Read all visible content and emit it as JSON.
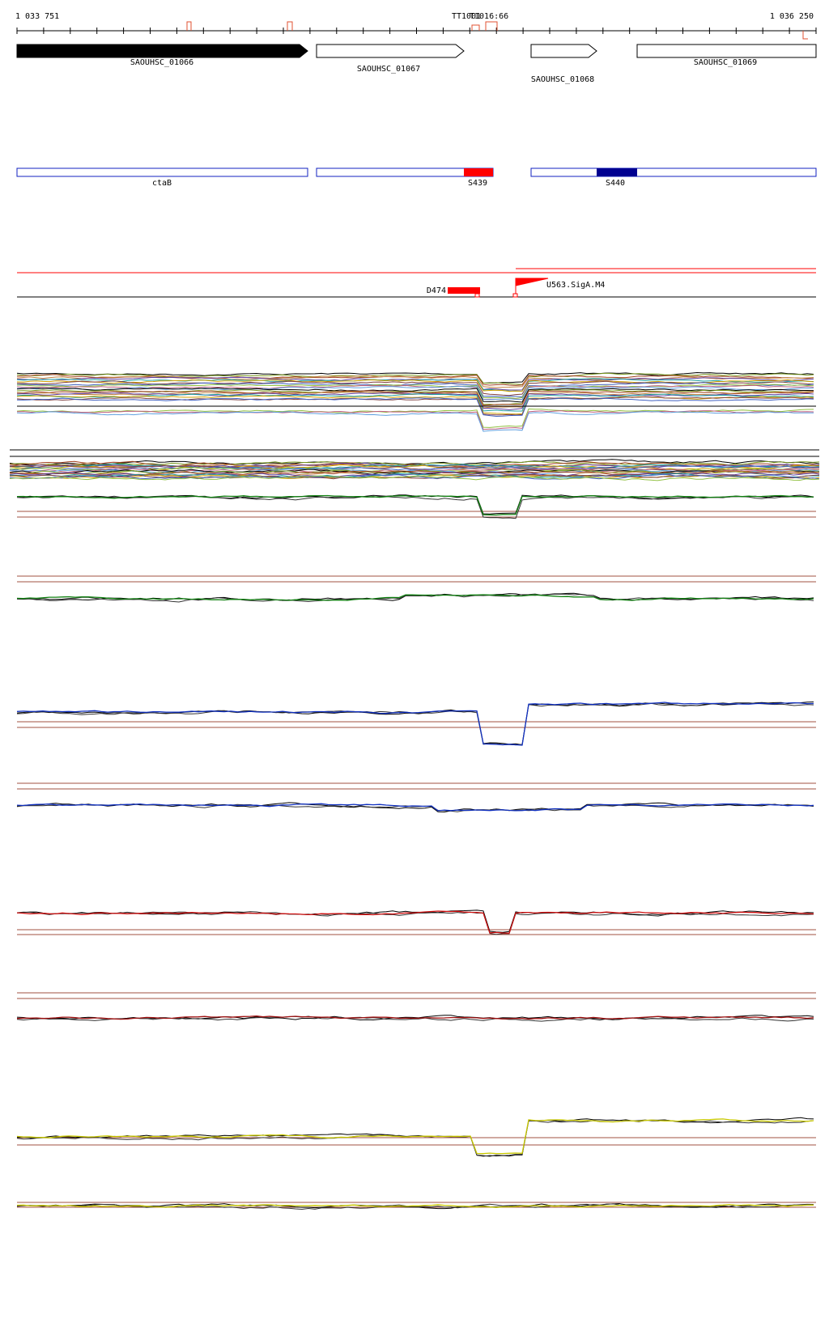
{
  "ruler": {
    "start": "1 033 751",
    "end": "1 036 250",
    "markers": [
      "TT1001",
      "T1016:66"
    ]
  },
  "genes": [
    {
      "label": "SAOUHSC_01066"
    },
    {
      "label": "SAOUHSC_01067"
    },
    {
      "label": "SAOUHSC_01068"
    },
    {
      "label": "SAOUHSC_01069"
    }
  ],
  "operons": [
    {
      "label": "ctaB"
    },
    {
      "label": "S439"
    },
    {
      "label": "S440"
    }
  ],
  "features": [
    {
      "label": "D474"
    },
    {
      "label": "U563.SigA.M4"
    }
  ]
}
